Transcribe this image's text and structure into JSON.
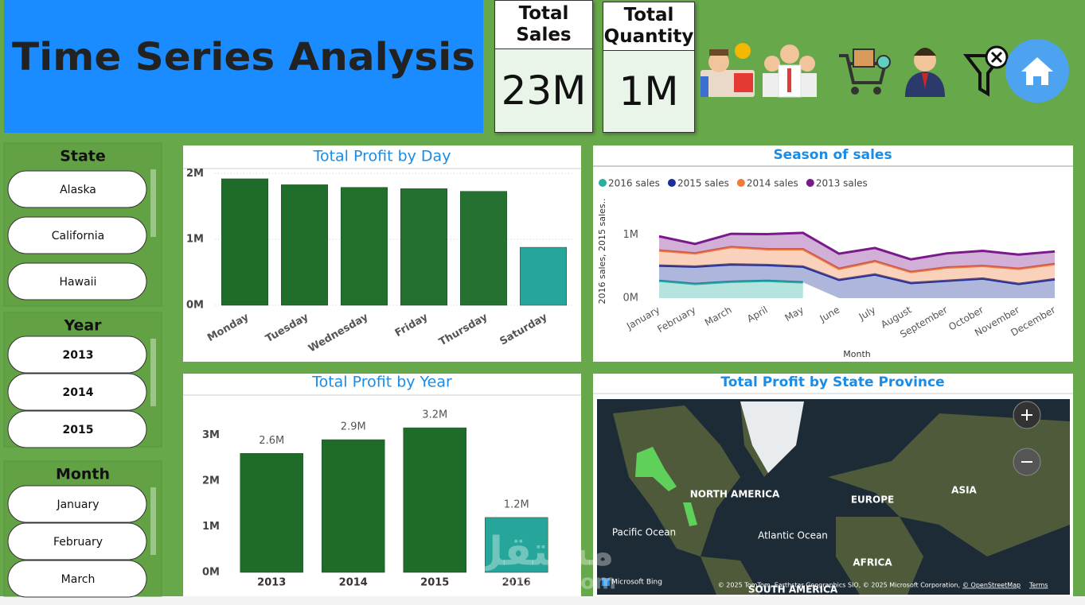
{
  "header": {
    "title": "Time Series Analysis"
  },
  "kpis": [
    {
      "label": "Total Sales",
      "value": "23M"
    },
    {
      "label": "Total Quantity",
      "value": "1M"
    }
  ],
  "slicers": [
    {
      "title": "State",
      "items": [
        "Alaska",
        "California",
        "Hawaii"
      ]
    },
    {
      "title": "Year",
      "items": [
        "2013",
        "2014",
        "2015"
      ]
    },
    {
      "title": "Month",
      "items": [
        "January",
        "February",
        "March"
      ]
    }
  ],
  "chart_data": [
    {
      "type": "bar",
      "title": "Total Profit by Day",
      "categories": [
        "Monday",
        "Tuesday",
        "Wednesday",
        "Friday",
        "Thursday",
        "Saturday"
      ],
      "values": [
        1920000,
        1830000,
        1790000,
        1770000,
        1730000,
        880000
      ],
      "colors": [
        "#1e6b2a",
        "#216d2b",
        "#226f2c",
        "#237030",
        "#247131",
        "#26a69a"
      ],
      "ylim": [
        0,
        2100000
      ],
      "yticks": [
        {
          "value": 0,
          "label": "0M"
        },
        {
          "value": 1000000,
          "label": "1M"
        },
        {
          "value": 2000000,
          "label": "2M"
        }
      ],
      "grid": true
    },
    {
      "type": "area",
      "title": "Season of sales",
      "stacked": true,
      "legend": "top-left",
      "x_label": "Month",
      "y_label": "2016 sales, 2015 sales..",
      "categories": [
        "January",
        "February",
        "March",
        "April",
        "May",
        "June",
        "July",
        "August",
        "September",
        "October",
        "November",
        "December"
      ],
      "series": [
        {
          "name": "2016 sales",
          "color": "#2ab0a0",
          "values": [
            275000,
            225000,
            260000,
            275000,
            250000,
            null,
            null,
            null,
            null,
            null,
            null,
            null
          ]
        },
        {
          "name": "2015 sales",
          "color": "#1a2f9c",
          "values": [
            240000,
            275000,
            275000,
            250000,
            250000,
            290000,
            375000,
            240000,
            275000,
            310000,
            225000,
            300000
          ]
        },
        {
          "name": "2014 sales",
          "color": "#f07a3c",
          "values": [
            240000,
            210000,
            275000,
            250000,
            275000,
            175000,
            210000,
            175000,
            210000,
            200000,
            240000,
            240000
          ]
        },
        {
          "name": "2013 sales",
          "color": "#7a1a8a",
          "values": [
            225000,
            150000,
            210000,
            240000,
            260000,
            240000,
            210000,
            200000,
            225000,
            240000,
            225000,
            200000
          ]
        }
      ],
      "ylim": [
        0,
        1450000
      ],
      "yticks": [
        {
          "value": 0,
          "label": "0M"
        },
        {
          "value": 1000000,
          "label": "1M"
        }
      ]
    },
    {
      "type": "bar",
      "title": "Total Profit by Year",
      "categories": [
        "2013",
        "2014",
        "2015",
        "2016"
      ],
      "values": [
        2600000,
        2900000,
        3160000,
        1200000
      ],
      "value_labels": [
        "2.6M",
        "2.9M",
        "3.2M",
        "1.2M"
      ],
      "colors": [
        "#1e6b2a",
        "#1e6b2a",
        "#1e6b2a",
        "#26a69a"
      ],
      "ylim": [
        0,
        3300000
      ],
      "yticks": [
        {
          "value": 0,
          "label": "0M"
        },
        {
          "value": 1000000,
          "label": "1M"
        },
        {
          "value": 2000000,
          "label": "2M"
        },
        {
          "value": 3000000,
          "label": "3M"
        }
      ],
      "grid": false
    },
    {
      "type": "map",
      "title": "Total Profit by State Province",
      "labels": [
        "NORTH AMERICA",
        "EUROPE",
        "ASIA",
        "Pacific Ocean",
        "Atlantic Ocean",
        "AFRICA",
        "SOUTH AMERICA"
      ],
      "provider": "Microsoft Bing",
      "attribution": [
        "© 2025 TomTom, Earthstar Geographics SIO, © 2025 Microsoft Corporation,",
        "© OpenStreetMap",
        "Terms"
      ]
    }
  ],
  "watermark": [
    "مستقل",
    "mostaql.com"
  ]
}
